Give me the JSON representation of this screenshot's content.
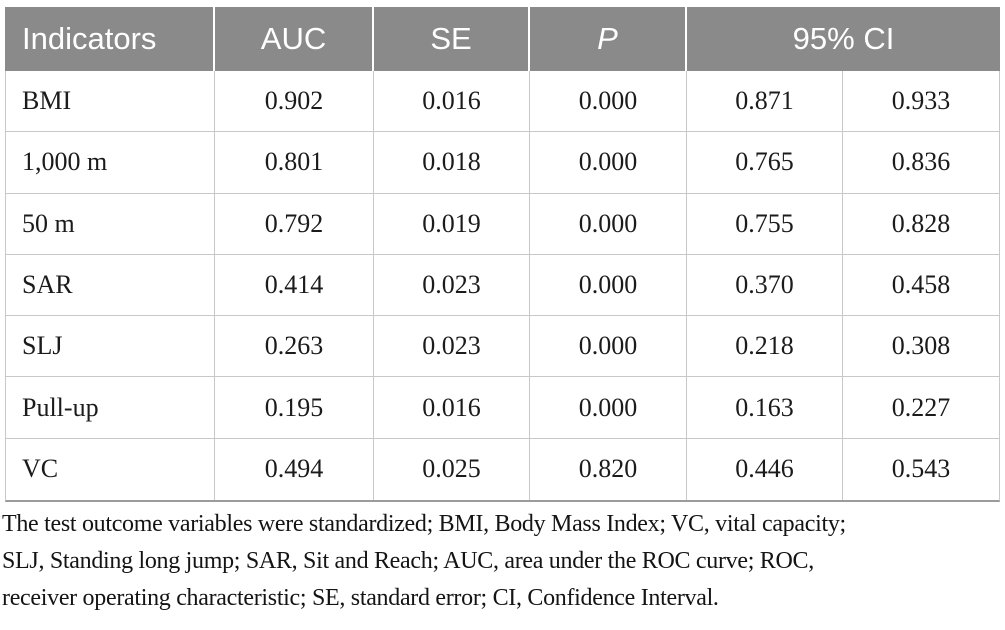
{
  "colors": {
    "header-bg": "#8a8a8a",
    "grid-line": "#c8c8c8",
    "bottom-border": "#9b9b9b",
    "body-text": "#1b1b1b",
    "header-text": "#ffffff"
  },
  "table": {
    "headers": {
      "indicators": "Indicators",
      "auc": "AUC",
      "se": "SE",
      "p": "P",
      "ci": "95% CI"
    },
    "rows": [
      {
        "indicator": "BMI",
        "auc": "0.902",
        "se": "0.016",
        "p": "0.000",
        "ci_low": "0.871",
        "ci_high": "0.933"
      },
      {
        "indicator": "1,000 m",
        "auc": "0.801",
        "se": "0.018",
        "p": "0.000",
        "ci_low": "0.765",
        "ci_high": "0.836"
      },
      {
        "indicator": "50 m",
        "auc": "0.792",
        "se": "0.019",
        "p": "0.000",
        "ci_low": "0.755",
        "ci_high": "0.828"
      },
      {
        "indicator": "SAR",
        "auc": "0.414",
        "se": "0.023",
        "p": "0.000",
        "ci_low": "0.370",
        "ci_high": "0.458"
      },
      {
        "indicator": "SLJ",
        "auc": "0.263",
        "se": "0.023",
        "p": "0.000",
        "ci_low": "0.218",
        "ci_high": "0.308"
      },
      {
        "indicator": "Pull-up",
        "auc": "0.195",
        "se": "0.016",
        "p": "0.000",
        "ci_low": "0.163",
        "ci_high": "0.227"
      },
      {
        "indicator": "VC",
        "auc": "0.494",
        "se": "0.025",
        "p": "0.820",
        "ci_low": "0.446",
        "ci_high": "0.543"
      }
    ]
  },
  "footnote": {
    "lines": [
      "The test outcome variables were standardized; BMI, Body Mass Index; VC, vital capacity;",
      "SLJ, Standing long jump; SAR, Sit and Reach; AUC, area under the ROC curve; ROC,",
      "receiver operating characteristic; SE, standard error; CI, Confidence Interval."
    ],
    "full_text": "The test outcome variables were standardized; BMI, Body Mass Index; VC, vital capacity; SLJ, Standing long jump; SAR, Sit and Reach; AUC, area under the ROC curve; ROC, receiver operating characteristic; SE, standard error; CI, Confidence Interval."
  }
}
